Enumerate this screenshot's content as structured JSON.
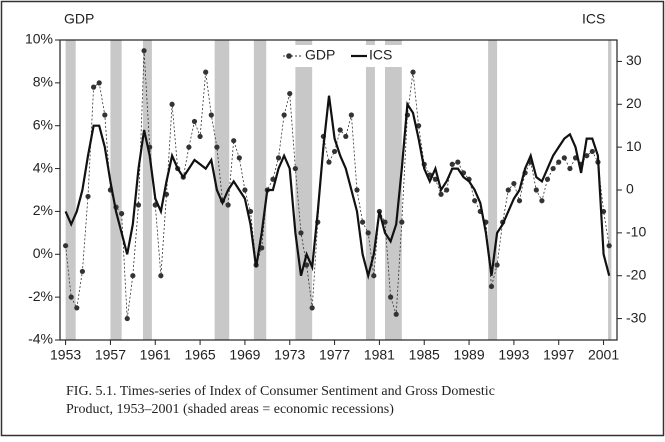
{
  "chart_data": {
    "type": "line",
    "y_axis_title": "GDP",
    "y2_axis_title": "ICS",
    "caption_lines": [
      "FIG. 5.1. Times-series of Index of Consumer Sentiment and Gross Domestic",
      "Product, 1953–2001 (shaded areas = economic recessions)"
    ],
    "x": [
      1953.0,
      1953.5,
      1954.0,
      1954.5,
      1955.0,
      1955.5,
      1956.0,
      1956.5,
      1957.0,
      1957.5,
      1958.0,
      1958.5,
      1959.0,
      1959.5,
      1960.0,
      1960.5,
      1961.0,
      1961.5,
      1962.0,
      1962.5,
      1963.0,
      1963.5,
      1964.0,
      1964.5,
      1965.0,
      1965.5,
      1966.0,
      1966.5,
      1967.0,
      1967.5,
      1968.0,
      1968.5,
      1969.0,
      1969.5,
      1970.0,
      1970.5,
      1971.0,
      1971.5,
      1972.0,
      1972.5,
      1973.0,
      1973.5,
      1974.0,
      1974.5,
      1975.0,
      1975.5,
      1976.0,
      1976.5,
      1977.0,
      1977.5,
      1978.0,
      1978.5,
      1979.0,
      1979.5,
      1980.0,
      1980.5,
      1981.0,
      1981.5,
      1982.0,
      1982.5,
      1983.0,
      1983.5,
      1984.0,
      1984.5,
      1985.0,
      1985.5,
      1986.0,
      1986.5,
      1987.0,
      1987.5,
      1988.0,
      1988.5,
      1989.0,
      1989.5,
      1990.0,
      1990.5,
      1991.0,
      1991.5,
      1992.0,
      1992.5,
      1993.0,
      1993.5,
      1994.0,
      1994.5,
      1995.0,
      1995.5,
      1996.0,
      1996.5,
      1997.0,
      1997.5,
      1998.0,
      1998.5,
      1999.0,
      1999.5,
      2000.0,
      2000.5,
      2001.0,
      2001.5
    ],
    "series": [
      {
        "name": "GDP",
        "color": "#333333",
        "values": [
          0.4,
          -2.0,
          -2.5,
          -0.8,
          2.7,
          7.8,
          8.0,
          6.5,
          3.0,
          2.2,
          1.9,
          -3.0,
          -1.0,
          2.3,
          9.5,
          5.0,
          2.3,
          -1.0,
          2.8,
          7.0,
          4.0,
          3.6,
          5.0,
          6.2,
          5.5,
          8.5,
          6.5,
          5.0,
          2.5,
          2.3,
          5.3,
          4.5,
          3.0,
          2.0,
          -0.5,
          0.3,
          3.0,
          3.5,
          4.5,
          6.5,
          7.5,
          4.0,
          1.0,
          -0.5,
          -2.5,
          1.5,
          5.5,
          4.3,
          4.8,
          5.8,
          5.5,
          6.5,
          3.0,
          1.5,
          1.0,
          -1.0,
          2.0,
          1.5,
          -2.0,
          -2.8,
          1.5,
          6.5,
          8.5,
          6.0,
          4.2,
          3.7,
          3.5,
          2.8,
          3.0,
          4.2,
          4.3,
          3.8,
          3.5,
          2.5,
          2.0,
          1.5,
          -1.5,
          -0.5,
          1.5,
          3.0,
          3.3,
          2.5,
          3.8,
          4.3,
          3.0,
          2.5,
          3.5,
          4.0,
          4.3,
          4.5,
          4.0,
          4.5,
          4.2,
          4.6,
          4.8,
          4.3,
          2.0,
          0.4
        ]
      },
      {
        "name": "ICS",
        "color": "#111111",
        "axis": "y2",
        "values": [
          -5,
          -8,
          -5,
          0,
          8,
          15,
          15,
          10,
          2,
          -5,
          -10,
          -15,
          -8,
          5,
          14,
          8,
          -2,
          -5,
          2,
          8,
          5,
          3,
          5,
          7,
          6,
          5,
          7,
          0,
          -3,
          0,
          2,
          0,
          -2,
          -8,
          -18,
          -10,
          0,
          0,
          5,
          8,
          5,
          -10,
          -20,
          -15,
          -18,
          -5,
          10,
          22,
          12,
          8,
          5,
          0,
          -5,
          -15,
          -20,
          -15,
          -5,
          -10,
          -12,
          -8,
          5,
          20,
          18,
          12,
          5,
          2,
          5,
          0,
          2,
          5,
          5,
          3,
          2,
          0,
          -3,
          -10,
          -20,
          -10,
          -8,
          -5,
          -2,
          0,
          5,
          8,
          3,
          2,
          5,
          8,
          10,
          12,
          13,
          10,
          4,
          12,
          12,
          8,
          -15,
          -20
        ]
      }
    ],
    "shaded_periods": [
      [
        1953.0,
        1953.9
      ],
      [
        1957.0,
        1958.0
      ],
      [
        1959.9,
        1960.7
      ],
      [
        1966.3,
        1967.6
      ],
      [
        1969.8,
        1970.9
      ],
      [
        1973.5,
        1975.0
      ],
      [
        1979.8,
        1980.6
      ],
      [
        1981.5,
        1983.0
      ],
      [
        1990.7,
        1991.5
      ],
      [
        2001.4,
        2001.7
      ]
    ],
    "xlim": [
      1952.5,
      2002.2
    ],
    "xticks": [
      1953,
      1957,
      1961,
      1965,
      1969,
      1973,
      1977,
      1981,
      1985,
      1989,
      1993,
      1997,
      2001
    ],
    "ylim": [
      -4,
      10
    ],
    "yticks": [
      {
        "value": -4,
        "label": "-4%"
      },
      {
        "value": -2,
        "label": "-2%"
      },
      {
        "value": 0,
        "label": "0%"
      },
      {
        "value": 2,
        "label": "2%"
      },
      {
        "value": 4,
        "label": "4%"
      },
      {
        "value": 6,
        "label": "6%"
      },
      {
        "value": 8,
        "label": "8%"
      },
      {
        "value": 10,
        "label": "10%"
      }
    ],
    "y2lim": [
      -35,
      35
    ],
    "y2ticks": [
      -30,
      -20,
      -10,
      0,
      10,
      20,
      30
    ],
    "legend": "top"
  }
}
